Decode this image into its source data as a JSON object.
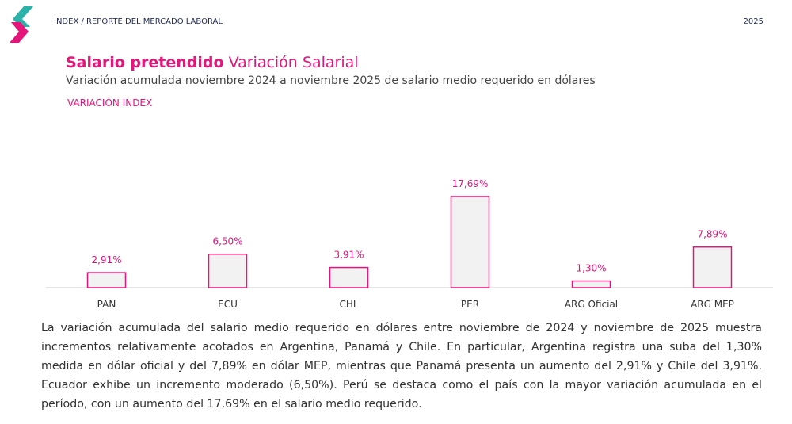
{
  "header": {
    "section": "INDEX / REPORTE DEL MERCADO LABORAL",
    "year": "2025"
  },
  "chart_data": {
    "type": "bar",
    "title": "Salario pretendido",
    "title_secondary": "Variación Salarial",
    "subtitle": "Variación acumulada noviembre 2024 a noviembre 2025 de salario medio requerido en dólares",
    "series_label": "VARIACIÓN INDEX",
    "categories": [
      "PAN",
      "ECU",
      "CHL",
      "PER",
      "ARG Oficial",
      "ARG MEP"
    ],
    "values": [
      2.91,
      6.5,
      3.91,
      17.69,
      1.3,
      7.89
    ],
    "value_labels": [
      "2,91%",
      "6,50%",
      "3,91%",
      "17,69%",
      "1,30%",
      "7,89%"
    ],
    "color": "#e5157a"
  },
  "body": {
    "paragraph": "La variación acumulada del salario medio requerido en dólares entre noviembre de 2024 y noviembre de 2025 muestra incrementos relativamente acotados en Argentina, Panamá y Chile. En particular, Argentina registra una suba del 1,30% medida en dólar oficial y del 7,89% en dólar MEP, mientras que Panamá presenta un aumento del 2,91% y Chile del 3,91%. Ecuador exhibe un incremento moderado (6,50%). Perú se destaca como el país con la mayor variación acumulada en el período, con un aumento del 17,69% en el salario medio requerido."
  }
}
